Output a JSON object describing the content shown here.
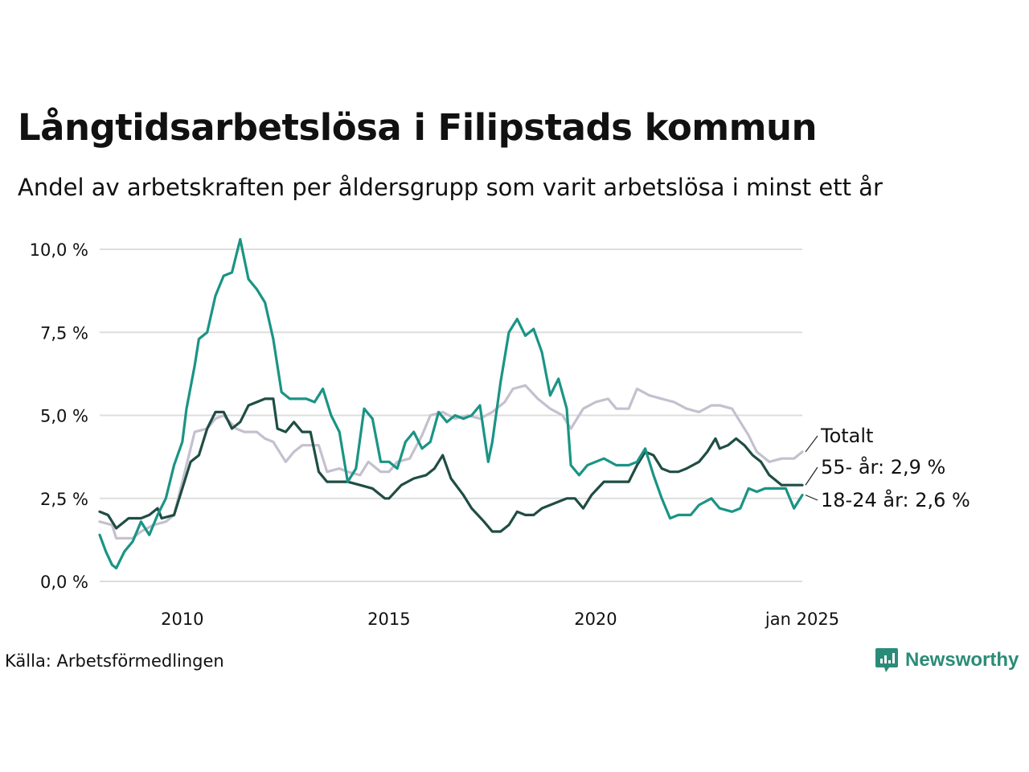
{
  "title": "Långtidsarbetslösa i Filipstads kommun",
  "subtitle": "Andel av arbetskraften per åldersgrupp som varit arbetslösa i minst ett år",
  "source": "Källa: Arbetsförmedlingen",
  "brand": "Newsworthy",
  "colors": {
    "totalt": "#c5c0ce",
    "age55": "#1f4d44",
    "age18_24": "#1a9485",
    "grid": "#dddddd",
    "brand": "#2a8c78"
  },
  "chart_data": {
    "type": "line",
    "title": "Långtidsarbetslösa i Filipstads kommun",
    "xlabel": "",
    "ylabel": "",
    "xlim": [
      2008.0,
      2025.0
    ],
    "ylim": [
      0,
      10
    ],
    "y_ticks": [
      {
        "value": 0,
        "label": "0,0 %"
      },
      {
        "value": 2.5,
        "label": "2,5 %"
      },
      {
        "value": 5,
        "label": "5,0 %"
      },
      {
        "value": 7.5,
        "label": "7,5 %"
      },
      {
        "value": 10,
        "label": "10,0 %"
      }
    ],
    "x_ticks": [
      {
        "value": 2010,
        "label": "2010"
      },
      {
        "value": 2015,
        "label": "2015"
      },
      {
        "value": 2020,
        "label": "2020"
      },
      {
        "value": 2025,
        "label": "jan 2025"
      }
    ],
    "series": [
      {
        "name": "Totalt",
        "label": "Totalt",
        "color_key": "totalt",
        "points": [
          [
            2008.0,
            1.8
          ],
          [
            2008.3,
            1.7
          ],
          [
            2008.4,
            1.3
          ],
          [
            2008.8,
            1.3
          ],
          [
            2009.0,
            1.5
          ],
          [
            2009.3,
            1.7
          ],
          [
            2009.6,
            1.8
          ],
          [
            2009.8,
            2.0
          ],
          [
            2010.0,
            3.0
          ],
          [
            2010.2,
            4.0
          ],
          [
            2010.3,
            4.5
          ],
          [
            2010.6,
            4.6
          ],
          [
            2010.8,
            4.9
          ],
          [
            2011.0,
            5.0
          ],
          [
            2011.3,
            4.6
          ],
          [
            2011.5,
            4.5
          ],
          [
            2011.8,
            4.5
          ],
          [
            2012.0,
            4.3
          ],
          [
            2012.2,
            4.2
          ],
          [
            2012.5,
            3.6
          ],
          [
            2012.7,
            3.9
          ],
          [
            2012.9,
            4.1
          ],
          [
            2013.3,
            4.1
          ],
          [
            2013.5,
            3.3
          ],
          [
            2013.8,
            3.4
          ],
          [
            2014.0,
            3.3
          ],
          [
            2014.3,
            3.2
          ],
          [
            2014.5,
            3.6
          ],
          [
            2014.8,
            3.3
          ],
          [
            2015.0,
            3.3
          ],
          [
            2015.2,
            3.6
          ],
          [
            2015.5,
            3.7
          ],
          [
            2015.8,
            4.4
          ],
          [
            2016.0,
            5.0
          ],
          [
            2016.3,
            5.1
          ],
          [
            2016.6,
            4.9
          ],
          [
            2016.9,
            5.0
          ],
          [
            2017.2,
            4.9
          ],
          [
            2017.5,
            5.1
          ],
          [
            2017.8,
            5.4
          ],
          [
            2018.0,
            5.8
          ],
          [
            2018.3,
            5.9
          ],
          [
            2018.6,
            5.5
          ],
          [
            2018.9,
            5.2
          ],
          [
            2019.2,
            5.0
          ],
          [
            2019.4,
            4.6
          ],
          [
            2019.7,
            5.2
          ],
          [
            2020.0,
            5.4
          ],
          [
            2020.3,
            5.5
          ],
          [
            2020.5,
            5.2
          ],
          [
            2020.8,
            5.2
          ],
          [
            2021.0,
            5.8
          ],
          [
            2021.3,
            5.6
          ],
          [
            2021.6,
            5.5
          ],
          [
            2021.9,
            5.4
          ],
          [
            2022.2,
            5.2
          ],
          [
            2022.5,
            5.1
          ],
          [
            2022.8,
            5.3
          ],
          [
            2023.0,
            5.3
          ],
          [
            2023.3,
            5.2
          ],
          [
            2023.5,
            4.8
          ],
          [
            2023.7,
            4.4
          ],
          [
            2023.9,
            3.9
          ],
          [
            2024.2,
            3.6
          ],
          [
            2024.5,
            3.7
          ],
          [
            2024.8,
            3.7
          ],
          [
            2025.0,
            3.9
          ]
        ]
      },
      {
        "name": "55- år",
        "label": "55- år: 2,9 %",
        "color_key": "age55",
        "points": [
          [
            2008.0,
            2.1
          ],
          [
            2008.2,
            2.0
          ],
          [
            2008.4,
            1.6
          ],
          [
            2008.7,
            1.9
          ],
          [
            2009.0,
            1.9
          ],
          [
            2009.2,
            2.0
          ],
          [
            2009.4,
            2.2
          ],
          [
            2009.5,
            1.9
          ],
          [
            2009.8,
            2.0
          ],
          [
            2010.0,
            2.8
          ],
          [
            2010.2,
            3.6
          ],
          [
            2010.4,
            3.8
          ],
          [
            2010.6,
            4.6
          ],
          [
            2010.8,
            5.1
          ],
          [
            2011.0,
            5.1
          ],
          [
            2011.2,
            4.6
          ],
          [
            2011.4,
            4.8
          ],
          [
            2011.6,
            5.3
          ],
          [
            2011.8,
            5.4
          ],
          [
            2012.0,
            5.5
          ],
          [
            2012.2,
            5.5
          ],
          [
            2012.3,
            4.6
          ],
          [
            2012.5,
            4.5
          ],
          [
            2012.7,
            4.8
          ],
          [
            2012.9,
            4.5
          ],
          [
            2013.1,
            4.5
          ],
          [
            2013.3,
            3.3
          ],
          [
            2013.5,
            3.0
          ],
          [
            2013.8,
            3.0
          ],
          [
            2014.0,
            3.0
          ],
          [
            2014.3,
            2.9
          ],
          [
            2014.6,
            2.8
          ],
          [
            2014.9,
            2.5
          ],
          [
            2015.0,
            2.5
          ],
          [
            2015.3,
            2.9
          ],
          [
            2015.6,
            3.1
          ],
          [
            2015.9,
            3.2
          ],
          [
            2016.1,
            3.4
          ],
          [
            2016.3,
            3.8
          ],
          [
            2016.5,
            3.1
          ],
          [
            2016.8,
            2.6
          ],
          [
            2017.0,
            2.2
          ],
          [
            2017.3,
            1.8
          ],
          [
            2017.5,
            1.5
          ],
          [
            2017.7,
            1.5
          ],
          [
            2017.9,
            1.7
          ],
          [
            2018.1,
            2.1
          ],
          [
            2018.3,
            2.0
          ],
          [
            2018.5,
            2.0
          ],
          [
            2018.7,
            2.2
          ],
          [
            2018.9,
            2.3
          ],
          [
            2019.1,
            2.4
          ],
          [
            2019.3,
            2.5
          ],
          [
            2019.5,
            2.5
          ],
          [
            2019.7,
            2.2
          ],
          [
            2019.9,
            2.6
          ],
          [
            2020.2,
            3.0
          ],
          [
            2020.5,
            3.0
          ],
          [
            2020.8,
            3.0
          ],
          [
            2021.0,
            3.5
          ],
          [
            2021.2,
            3.9
          ],
          [
            2021.4,
            3.8
          ],
          [
            2021.6,
            3.4
          ],
          [
            2021.8,
            3.3
          ],
          [
            2022.0,
            3.3
          ],
          [
            2022.2,
            3.4
          ],
          [
            2022.5,
            3.6
          ],
          [
            2022.7,
            3.9
          ],
          [
            2022.9,
            4.3
          ],
          [
            2023.0,
            4.0
          ],
          [
            2023.2,
            4.1
          ],
          [
            2023.4,
            4.3
          ],
          [
            2023.6,
            4.1
          ],
          [
            2023.8,
            3.8
          ],
          [
            2024.0,
            3.6
          ],
          [
            2024.2,
            3.2
          ],
          [
            2024.5,
            2.9
          ],
          [
            2024.8,
            2.9
          ],
          [
            2025.0,
            2.9
          ]
        ]
      },
      {
        "name": "18-24 år",
        "label": "18-24 år: 2,6 %",
        "color_key": "age18_24",
        "points": [
          [
            2008.0,
            1.4
          ],
          [
            2008.15,
            0.9
          ],
          [
            2008.3,
            0.5
          ],
          [
            2008.4,
            0.4
          ],
          [
            2008.6,
            0.9
          ],
          [
            2008.8,
            1.2
          ],
          [
            2009.0,
            1.8
          ],
          [
            2009.2,
            1.4
          ],
          [
            2009.4,
            2.0
          ],
          [
            2009.6,
            2.5
          ],
          [
            2009.8,
            3.5
          ],
          [
            2010.0,
            4.2
          ],
          [
            2010.1,
            5.2
          ],
          [
            2010.3,
            6.5
          ],
          [
            2010.4,
            7.3
          ],
          [
            2010.6,
            7.5
          ],
          [
            2010.8,
            8.6
          ],
          [
            2011.0,
            9.2
          ],
          [
            2011.2,
            9.3
          ],
          [
            2011.4,
            10.3
          ],
          [
            2011.6,
            9.1
          ],
          [
            2011.8,
            8.8
          ],
          [
            2012.0,
            8.4
          ],
          [
            2012.2,
            7.3
          ],
          [
            2012.4,
            5.7
          ],
          [
            2012.6,
            5.5
          ],
          [
            2012.8,
            5.5
          ],
          [
            2013.0,
            5.5
          ],
          [
            2013.2,
            5.4
          ],
          [
            2013.4,
            5.8
          ],
          [
            2013.6,
            5.0
          ],
          [
            2013.8,
            4.5
          ],
          [
            2014.0,
            3.0
          ],
          [
            2014.2,
            3.4
          ],
          [
            2014.4,
            5.2
          ],
          [
            2014.6,
            4.9
          ],
          [
            2014.8,
            3.6
          ],
          [
            2015.0,
            3.6
          ],
          [
            2015.2,
            3.4
          ],
          [
            2015.4,
            4.2
          ],
          [
            2015.6,
            4.5
          ],
          [
            2015.8,
            4.0
          ],
          [
            2016.0,
            4.2
          ],
          [
            2016.2,
            5.1
          ],
          [
            2016.4,
            4.8
          ],
          [
            2016.6,
            5.0
          ],
          [
            2016.8,
            4.9
          ],
          [
            2017.0,
            5.0
          ],
          [
            2017.2,
            5.3
          ],
          [
            2017.4,
            3.6
          ],
          [
            2017.5,
            4.2
          ],
          [
            2017.7,
            6.0
          ],
          [
            2017.9,
            7.5
          ],
          [
            2018.1,
            7.9
          ],
          [
            2018.3,
            7.4
          ],
          [
            2018.5,
            7.6
          ],
          [
            2018.7,
            6.9
          ],
          [
            2018.9,
            5.6
          ],
          [
            2019.1,
            6.1
          ],
          [
            2019.3,
            5.2
          ],
          [
            2019.4,
            3.5
          ],
          [
            2019.6,
            3.2
          ],
          [
            2019.8,
            3.5
          ],
          [
            2020.0,
            3.6
          ],
          [
            2020.2,
            3.7
          ],
          [
            2020.5,
            3.5
          ],
          [
            2020.8,
            3.5
          ],
          [
            2021.0,
            3.6
          ],
          [
            2021.2,
            4.0
          ],
          [
            2021.4,
            3.2
          ],
          [
            2021.6,
            2.5
          ],
          [
            2021.8,
            1.9
          ],
          [
            2022.0,
            2.0
          ],
          [
            2022.3,
            2.0
          ],
          [
            2022.5,
            2.3
          ],
          [
            2022.8,
            2.5
          ],
          [
            2023.0,
            2.2
          ],
          [
            2023.3,
            2.1
          ],
          [
            2023.5,
            2.2
          ],
          [
            2023.7,
            2.8
          ],
          [
            2023.9,
            2.7
          ],
          [
            2024.1,
            2.8
          ],
          [
            2024.4,
            2.8
          ],
          [
            2024.6,
            2.8
          ],
          [
            2024.8,
            2.2
          ],
          [
            2025.0,
            2.6
          ]
        ]
      }
    ]
  }
}
